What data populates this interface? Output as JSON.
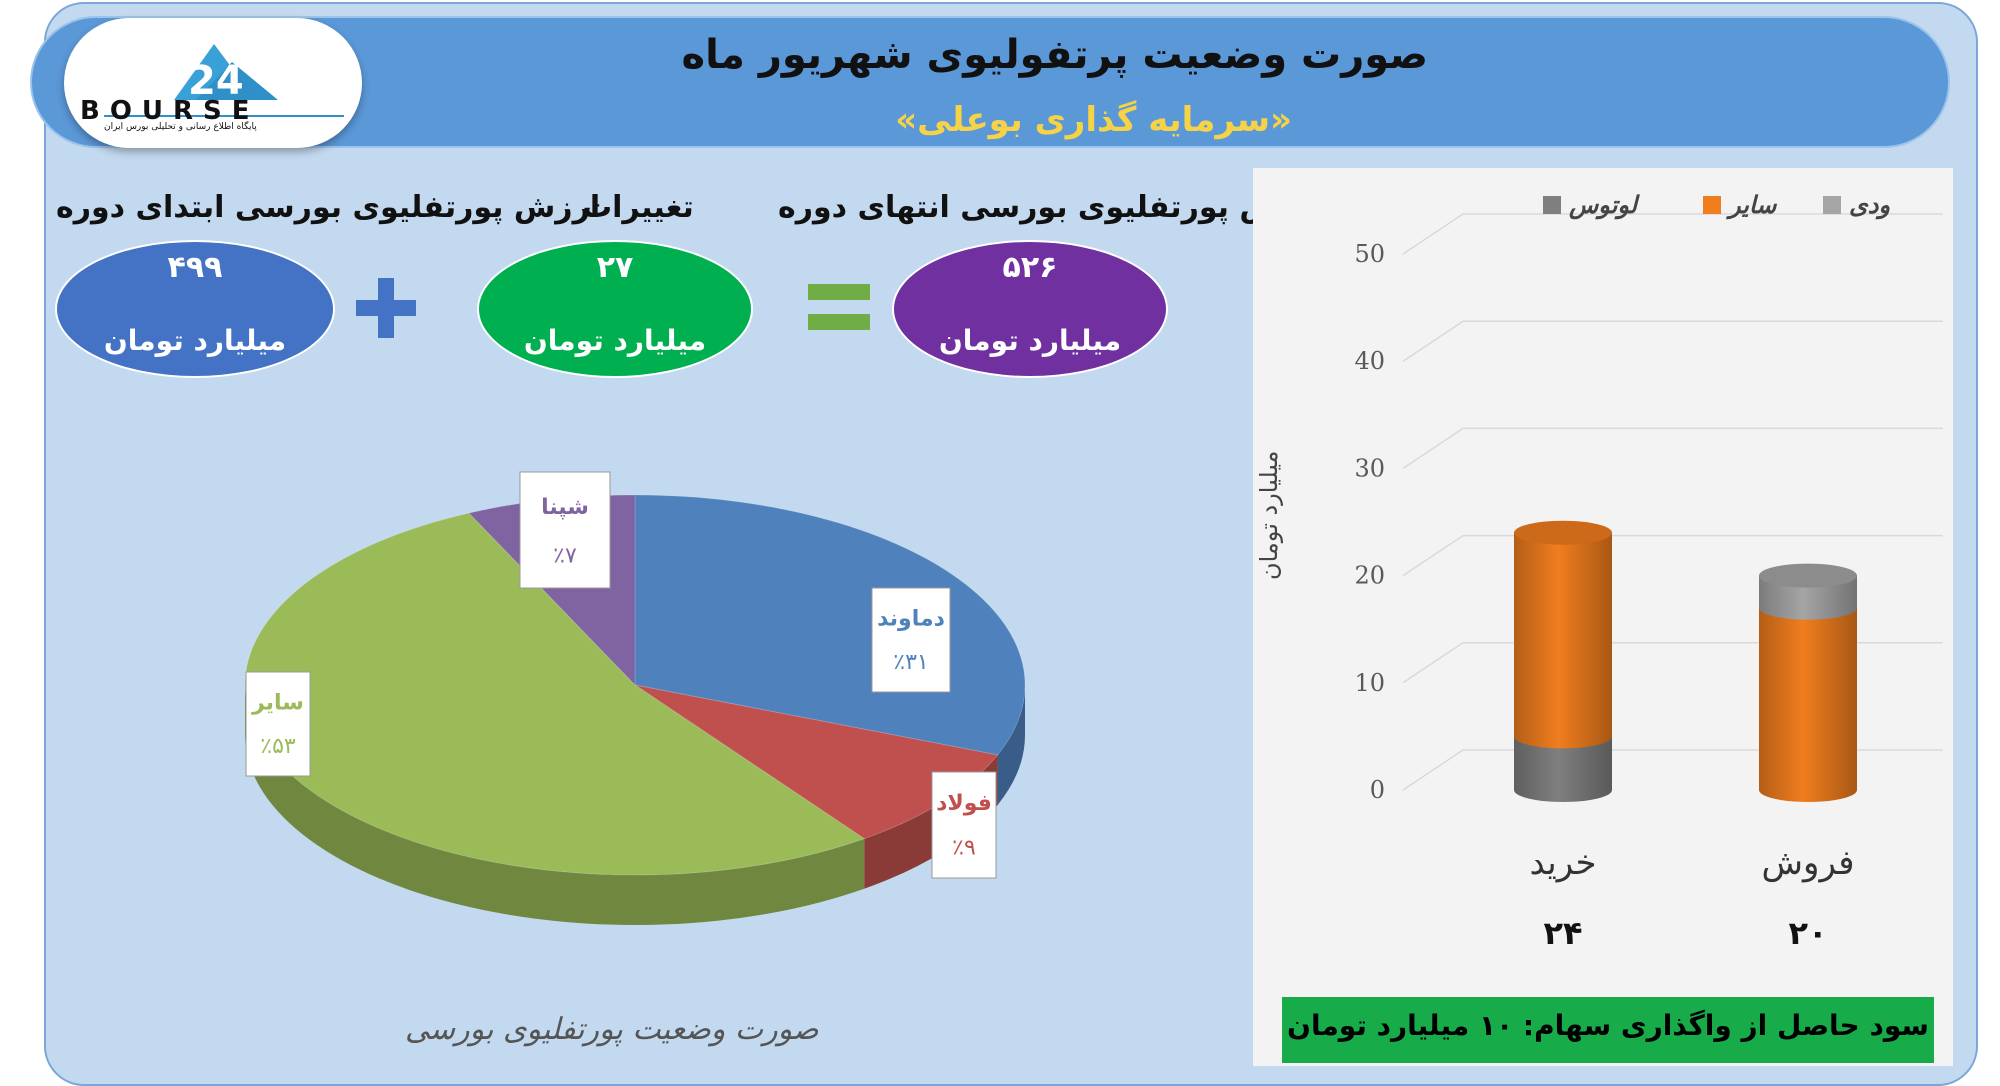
{
  "header": {
    "title": "صورت وضعیت پرتفولیوی شهریور ماه",
    "subtitle": "«سرمایه گذاری بوعلی»"
  },
  "logo": {
    "brand": "BOURSE",
    "number": "24",
    "tagline": "پایگاه اطلاع رسانی و تحلیلی بورس ایران"
  },
  "kpis": {
    "end": {
      "label": "ارزش پورتفلیوی بورسی انتهای دوره",
      "value": "۵۲۶",
      "unit": "میلیارد تومان",
      "color": "#7030a0"
    },
    "change": {
      "label": "تغییرات",
      "value": "۲۷",
      "unit": "میلیارد تومان",
      "color": "#00b050"
    },
    "start": {
      "label": "ارزش پورتفلیوی بورسی ابتدای دوره",
      "value": "۴۹۹",
      "unit": "میلیارد تومان",
      "color": "#4472c4"
    },
    "plus_symbol": "plus-icon",
    "equals_symbol": "equals-icon"
  },
  "chart_data": [
    {
      "type": "pie",
      "title": "صورت وضعیت پورتفلیوی بورسی",
      "slices": [
        {
          "name": "دماوند",
          "value": 31,
          "label": "٪۳۱",
          "color": "#4f81bd"
        },
        {
          "name": "فولاد",
          "value": 9,
          "label": "٪۹",
          "color": "#c0504d"
        },
        {
          "name": "سایر",
          "value": 53,
          "label": "٪۵۳",
          "color": "#9bbb59"
        },
        {
          "name": "شپنا",
          "value": 7,
          "label": "٪۷",
          "color": "#8064a2"
        }
      ]
    },
    {
      "type": "bar",
      "stacked": true,
      "categories": [
        "خرید",
        "فروش"
      ],
      "category_totals": [
        "۲۴",
        "۲۰"
      ],
      "series": [
        {
          "name": "لوتوس",
          "values": [
            5,
            0
          ],
          "color": "#7f7f7f"
        },
        {
          "name": "سایر",
          "values": [
            19,
            17
          ],
          "color": "#f07d1e"
        },
        {
          "name": "ودی",
          "values": [
            0,
            3
          ],
          "color": "#a5a5a5"
        }
      ],
      "ylabel": "میلیارد تومان",
      "ylim": [
        0,
        50
      ],
      "yticks": [
        "0",
        "10",
        "20",
        "30",
        "40",
        "50"
      ],
      "grid": true,
      "legend_position": "top"
    }
  ],
  "profit": {
    "text": "سود حاصل از واگذاری سهام: ۱۰ میلیارد تومان"
  }
}
